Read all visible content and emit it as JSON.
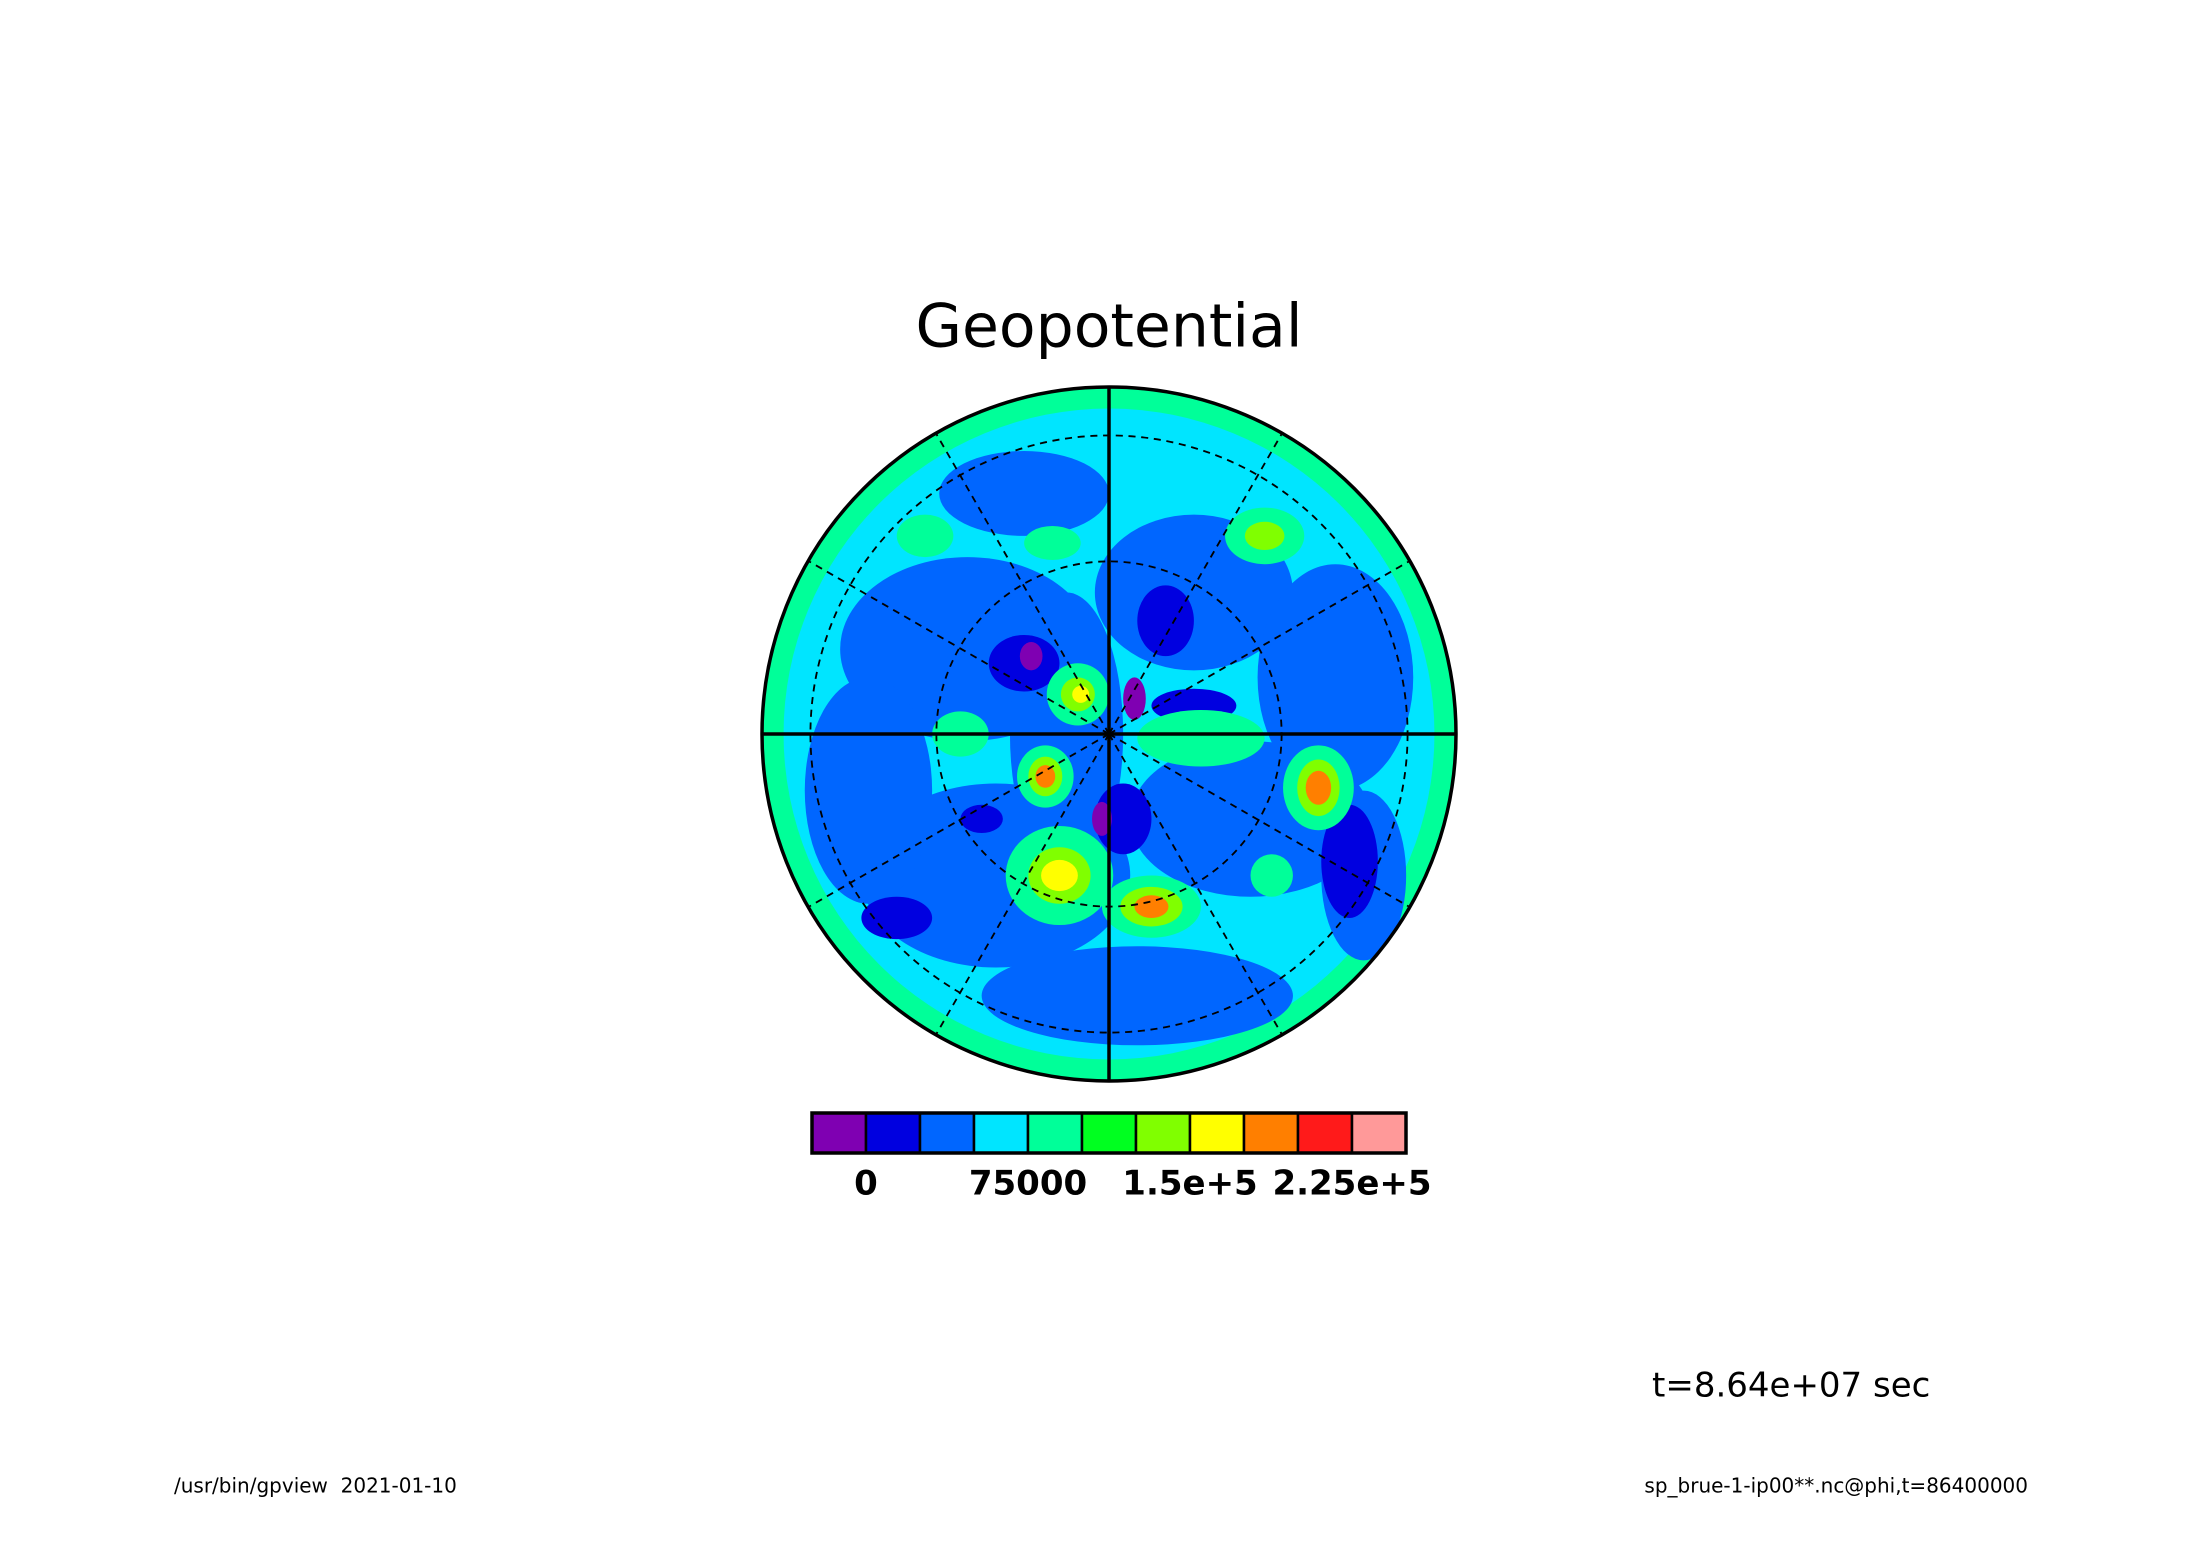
{
  "chart_data": {
    "type": "contour",
    "title": "Geopotential",
    "colorbar": {
      "bins": [
        -25000,
        0,
        25000,
        50000,
        75000,
        100000,
        125000,
        150000,
        175000,
        200000,
        225000,
        250000
      ],
      "colors": [
        "#7f00b2",
        "#0000e0",
        "#0066ff",
        "#00e5ff",
        "#00ff99",
        "#00ff20",
        "#80ff00",
        "#ffff00",
        "#ff7f00",
        "#ff1a1a",
        "#ff9999"
      ],
      "xlim": [
        -25000,
        250000
      ],
      "xticks": [
        0,
        75000,
        {
          "value": 150000,
          "label": "1.5e+5"
        },
        {
          "value": 225000,
          "label": "2.25e+5"
        }
      ]
    },
    "time_label": "t=8.64e+07 sec",
    "footer_left": "/usr/bin/gpview  2021-01-10",
    "footer_right": "sp_brue-1-ip00**.nc@phi,t=86400000"
  }
}
